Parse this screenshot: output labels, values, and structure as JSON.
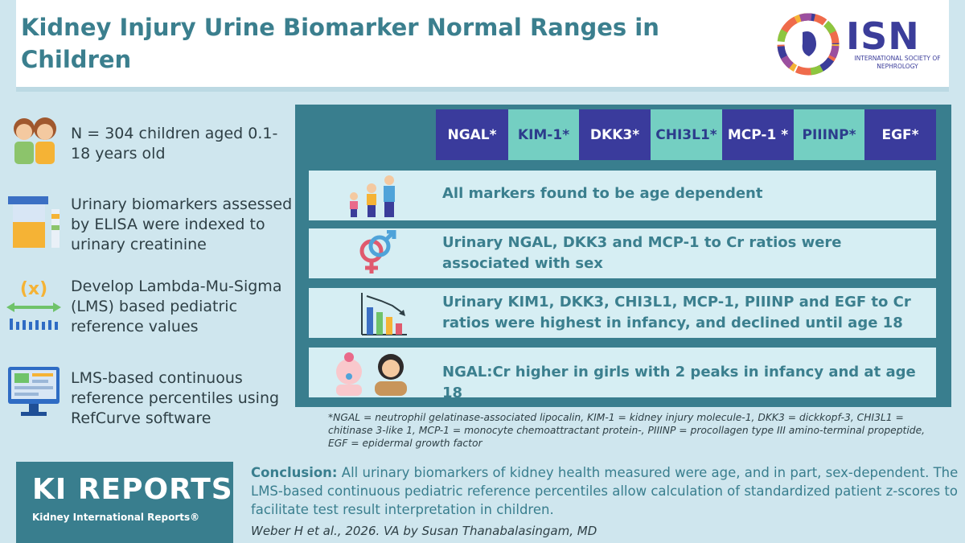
{
  "title": "Kidney Injury Urine Biomarker Normal Ranges in Children",
  "logo": {
    "name": "ISN",
    "subtitle": "INTERNATIONAL SOCIETY OF NEPHROLOGY"
  },
  "left_items": [
    {
      "icon": "children-icon",
      "text": "N = 304 children aged 0.1-18 years old"
    },
    {
      "icon": "urine-sample-icon",
      "text": "Urinary biomarkers assessed by ELISA were indexed to urinary creatinine"
    },
    {
      "icon": "lambda-mu-sigma-icon",
      "text": "Develop Lambda-Mu-Sigma (LMS) based pediatric reference values"
    },
    {
      "icon": "computer-software-icon",
      "text": "LMS-based continuous reference percentiles using RefCurve software"
    }
  ],
  "biomarkers": [
    {
      "label": "NGAL*",
      "style": "dark"
    },
    {
      "label": "KIM-1*",
      "style": "light"
    },
    {
      "label": "DKK3*",
      "style": "dark"
    },
    {
      "label": "CHI3L1*",
      "style": "light"
    },
    {
      "label": "MCP-1 *",
      "style": "dark"
    },
    {
      "label": "PIIINP*",
      "style": "light"
    },
    {
      "label": "EGF*",
      "style": "dark"
    }
  ],
  "findings": [
    {
      "icon": "family-age-icon",
      "text": "All markers found to be age dependent"
    },
    {
      "icon": "sex-symbol-icon",
      "text": "Urinary NGAL, DKK3 and MCP-1 to Cr ratios were associated with sex"
    },
    {
      "icon": "declining-bar-chart-icon",
      "text": "Urinary KIM1, DKK3, CHI3L1, MCP-1, PIIINP and EGF to Cr ratios were highest in infancy, and declined until age 18"
    },
    {
      "icon": "baby-and-girl-icon",
      "text": "NGAL:Cr higher in girls with 2 peaks in infancy and at age 18"
    }
  ],
  "footnote": "*NGAL = neutrophil gelatinase-associated lipocalin, KIM-1 = kidney injury molecule-1, DKK3 = dickkopf-3, CHI3L1 = chitinase 3-like 1, MCP-1 = monocyte chemoattractant protein-, PIIINP = procollagen type III amino-terminal propeptide, EGF = epidermal growth factor",
  "journal": {
    "name": "KI REPORTS",
    "full_name": "Kidney International Reports®"
  },
  "conclusion": {
    "label": "Conclusion:",
    "text": " All urinary biomarkers of kidney health measured were age, and in part, sex-dependent. The LMS-based continuous pediatric reference percentiles allow calculation of standardized patient z-scores to facilitate test result interpretation in children."
  },
  "citation": "Weber H et al., 2026. VA by Susan Thanabalasingam, MD",
  "colors": {
    "teal": "#397e8e",
    "navy": "#3a3b9c",
    "mint": "#74cfc2",
    "background": "#cfe6ee"
  }
}
